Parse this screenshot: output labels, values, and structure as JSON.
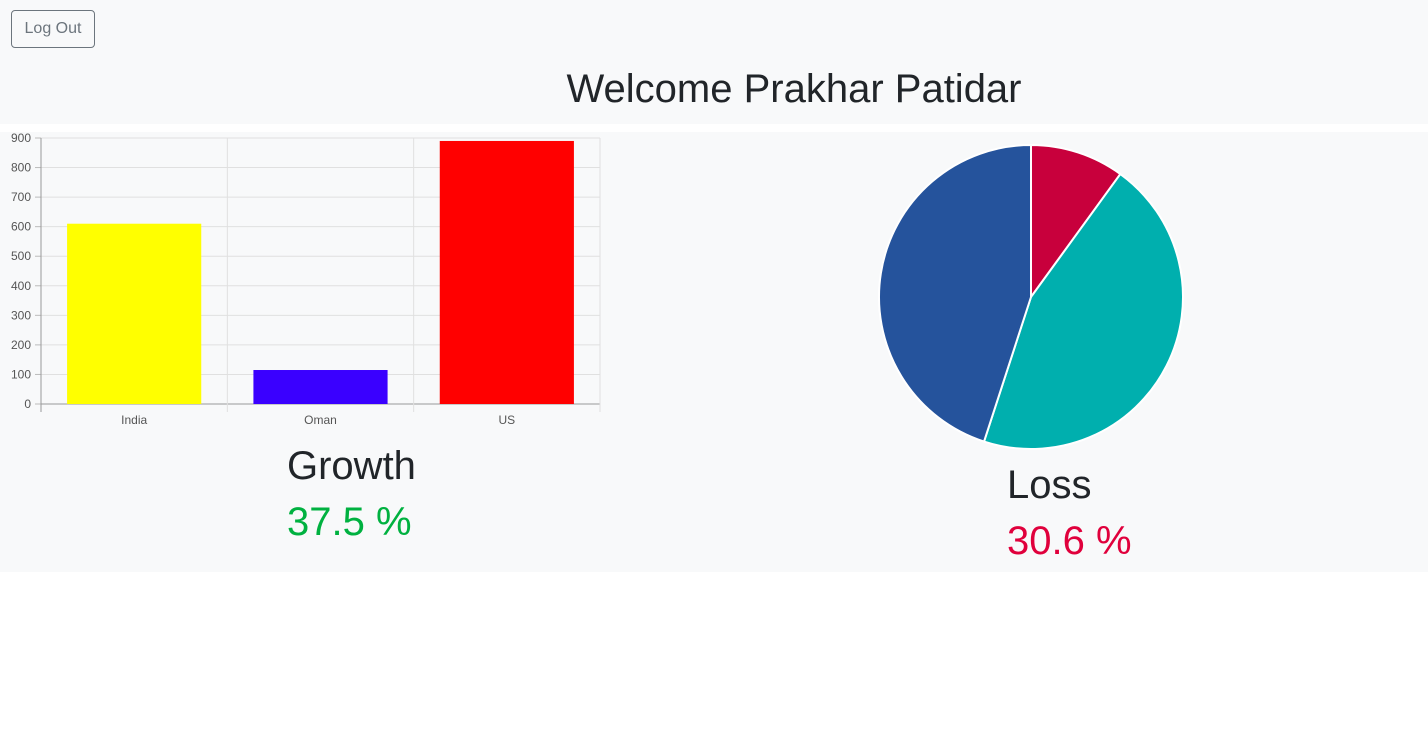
{
  "header": {
    "logout_label": "Log Out",
    "welcome_text": "Welcome Prakhar Patidar"
  },
  "growth": {
    "title": "Growth",
    "value": "37.5 %",
    "color": "#00b140"
  },
  "loss": {
    "title": "Loss",
    "value": "30.6 %",
    "color": "#e0003c"
  },
  "chart_data": [
    {
      "type": "bar",
      "categories": [
        "India",
        "Oman",
        "US"
      ],
      "values": [
        610,
        115,
        890
      ],
      "colors": [
        "#ffff00",
        "#3a00ff",
        "#ff0000"
      ],
      "ylim": [
        0,
        900
      ],
      "yticks": [
        0,
        100,
        200,
        300,
        400,
        500,
        600,
        700,
        800,
        900
      ],
      "grid": true,
      "legend": "none"
    },
    {
      "type": "pie",
      "values": [
        10,
        45,
        45
      ],
      "colors": [
        "#c8003c",
        "#00afae",
        "#25539c"
      ],
      "legend": "none"
    }
  ]
}
